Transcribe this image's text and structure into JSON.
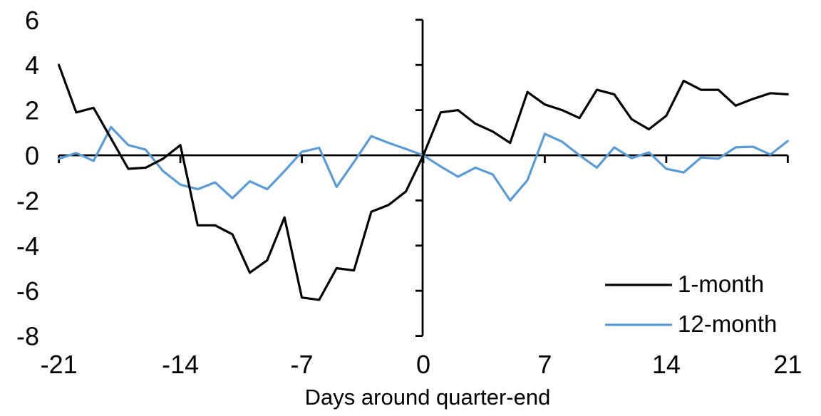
{
  "chart_data": {
    "type": "line",
    "title": "",
    "xlabel": "Days around quarter-end",
    "ylabel": "",
    "x_range": [
      -21,
      21
    ],
    "y_range": [
      -8,
      6
    ],
    "x_ticks": [
      -21,
      -14,
      -7,
      0,
      7,
      14,
      21
    ],
    "y_ticks": [
      6,
      4,
      2,
      0,
      -2,
      -4,
      -6,
      -8
    ],
    "grid": false,
    "legend_position": "inside-bottom-right",
    "axis_color": "#000000",
    "x": [
      -21,
      -20,
      -19,
      -18,
      -17,
      -16,
      -15,
      -14,
      -13,
      -12,
      -11,
      -10,
      -9,
      -8,
      -7,
      -6,
      -5,
      -4,
      -3,
      -2,
      -1,
      0,
      1,
      2,
      3,
      4,
      5,
      6,
      7,
      8,
      9,
      10,
      11,
      12,
      13,
      14,
      15,
      16,
      17,
      18,
      19,
      20,
      21
    ],
    "series": [
      {
        "name": "1-month",
        "color": "#000000",
        "values": [
          4.0,
          1.9,
          2.1,
          0.75,
          -0.6,
          -0.55,
          -0.15,
          0.45,
          -3.1,
          -3.1,
          -3.5,
          -5.2,
          -4.65,
          -2.75,
          -6.3,
          -6.4,
          -5.0,
          -5.1,
          -2.5,
          -2.2,
          -1.6,
          0.0,
          1.9,
          2.0,
          1.4,
          1.05,
          0.55,
          2.8,
          2.25,
          2.0,
          1.65,
          2.9,
          2.7,
          1.6,
          1.15,
          1.75,
          3.3,
          2.9,
          2.9,
          2.2,
          2.5,
          2.75,
          2.7
        ]
      },
      {
        "name": "12-month",
        "color": "#5B9BD5",
        "values": [
          -0.15,
          0.1,
          -0.25,
          1.25,
          0.45,
          0.25,
          -0.7,
          -1.3,
          -1.5,
          -1.2,
          -1.9,
          -1.15,
          -1.5,
          -0.7,
          0.15,
          0.33,
          -1.4,
          -0.3,
          0.85,
          0.55,
          0.28,
          0.0,
          -0.5,
          -0.95,
          -0.55,
          -0.85,
          -2.0,
          -1.1,
          0.95,
          0.6,
          0.0,
          -0.55,
          0.35,
          -0.13,
          0.13,
          -0.6,
          -0.76,
          -0.1,
          -0.15,
          0.35,
          0.38,
          0.03,
          0.63
        ]
      }
    ]
  }
}
